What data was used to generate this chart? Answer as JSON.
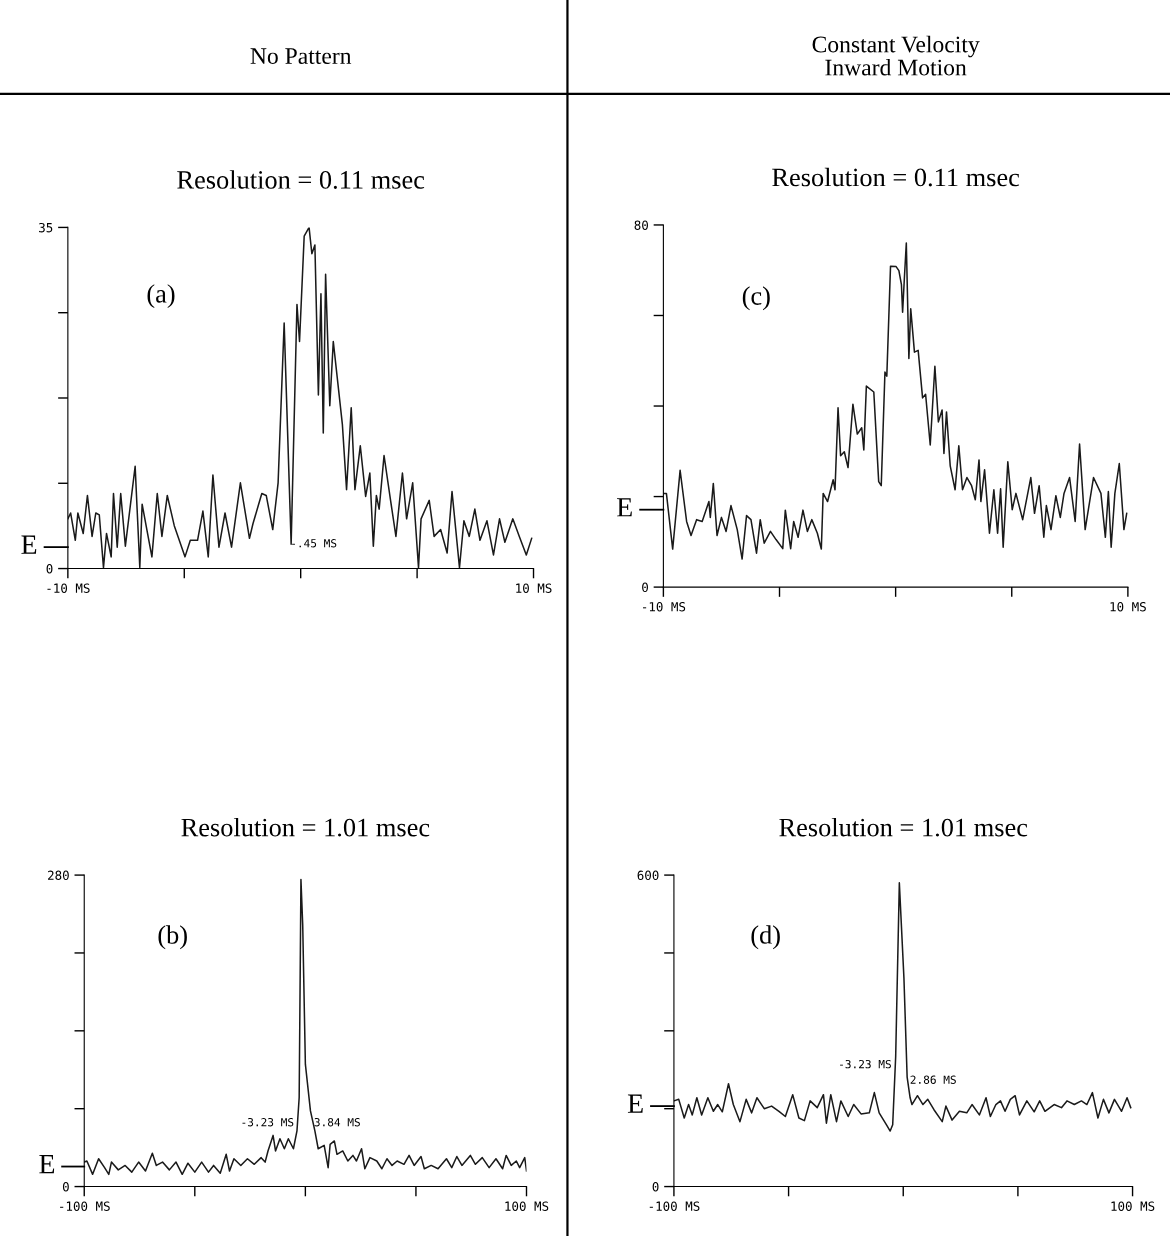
{
  "chart_data": [
    {
      "type": "line",
      "title": "No Pattern",
      "subtitle": "Resolution = 0.11 msec",
      "marker": "none",
      "line_style": "solid",
      "grid": false,
      "xlim": [
        -10,
        10
      ],
      "xticks": [
        {
          "value": -10,
          "label": "-10 MS"
        },
        {
          "value": -5,
          "label": null
        },
        {
          "value": 0,
          "label": null
        },
        {
          "value": 5,
          "label": null
        },
        {
          "value": 10,
          "label": "10 MS"
        }
      ],
      "ylim": [
        0,
        35
      ],
      "yticks": [
        0,
        {
          "value": 8.75,
          "label": null
        },
        {
          "value": 17.5,
          "label": null
        },
        {
          "value": 26.25,
          "label": null
        },
        35
      ],
      "ref_lines": [
        {
          "axis": "y",
          "value": 2.2,
          "label": "E"
        }
      ],
      "annotations": [
        "(a)",
        {
          "text": "-.45 MS",
          "x": -0.45,
          "y": 2.5
        }
      ],
      "series": [
        {
          "color": "#1a1a1a",
          "x": [
            -10.0,
            -9.88,
            -9.68,
            -9.57,
            -9.34,
            -9.16,
            -8.96,
            -8.8,
            -8.65,
            -8.47,
            -8.34,
            -8.14,
            -8.04,
            -7.88,
            -7.73,
            -7.53,
            -7.11,
            -6.91,
            -6.81,
            -6.39,
            -6.16,
            -5.96,
            -5.73,
            -5.43,
            -4.97,
            -4.74,
            -4.43,
            -4.2,
            -3.97,
            -3.77,
            -3.51,
            -3.25,
            -2.97,
            -2.59,
            -2.2,
            -2.05,
            -1.67,
            -1.48,
            -1.2,
            -0.97,
            -0.71,
            -0.41,
            -0.16,
            -0.05,
            0.15,
            0.36,
            0.48,
            0.61,
            0.76,
            0.87,
            0.97,
            1.07,
            1.25,
            1.4,
            1.79,
            1.97,
            2.17,
            2.33,
            2.56,
            2.79,
            2.97,
            3.12,
            3.25,
            3.37,
            3.58,
            3.86,
            4.09,
            4.37,
            4.55,
            4.81,
            5.06,
            5.17,
            5.52,
            5.73,
            6.01,
            6.29,
            6.5,
            6.82,
            7.01,
            7.24,
            7.48,
            7.7,
            8.0,
            8.28,
            8.54,
            8.77,
            9.11,
            9.39,
            9.69,
            9.92
          ],
          "values": [
            5.1,
            5.7,
            2.9,
            5.7,
            3.6,
            7.5,
            3.3,
            5.7,
            5.5,
            0.1,
            3.6,
            1.2,
            7.7,
            2.2,
            7.7,
            2.3,
            10.5,
            0.1,
            6.6,
            1.2,
            7.7,
            3.3,
            7.5,
            4.4,
            1.2,
            2.9,
            2.9,
            5.9,
            1.2,
            9.6,
            2.2,
            5.7,
            2.2,
            8.8,
            3.1,
            4.6,
            7.7,
            7.5,
            4.0,
            8.8,
            25.2,
            2.5,
            27.1,
            23.3,
            34.1,
            35.0,
            32.3,
            33.2,
            17.8,
            28.2,
            13.9,
            30.2,
            16.7,
            23.3,
            14.8,
            8.1,
            16.5,
            8.1,
            12.6,
            7.4,
            9.8,
            2.3,
            7.5,
            6.1,
            11.6,
            7.0,
            3.3,
            9.8,
            5.1,
            8.8,
            0.1,
            5.1,
            7.0,
            3.3,
            4.0,
            1.6,
            7.9,
            0.1,
            4.9,
            3.3,
            6.1,
            2.9,
            4.9,
            1.4,
            5.1,
            2.7,
            5.1,
            3.3,
            1.4,
            3.1
          ]
        }
      ]
    },
    {
      "type": "line",
      "title": "Constant Velocity\nInward Motion",
      "subtitle": "Resolution = 0.11 msec",
      "marker": "none",
      "line_style": "solid",
      "grid": false,
      "xlim": [
        -10,
        10
      ],
      "xticks": [
        {
          "value": -10,
          "label": "-10 MS"
        },
        {
          "value": -5,
          "label": null
        },
        {
          "value": 0,
          "label": null
        },
        {
          "value": 5,
          "label": null
        },
        {
          "value": 10,
          "label": "10 MS"
        }
      ],
      "ylim": [
        0,
        80
      ],
      "yticks": [
        0,
        {
          "value": 20,
          "label": null
        },
        {
          "value": 40,
          "label": null
        },
        {
          "value": 60,
          "label": null
        },
        80
      ],
      "ref_lines": [
        {
          "axis": "y",
          "value": 17.1,
          "label": "E"
        }
      ],
      "annotations": [
        "(c)"
      ],
      "series": [
        {
          "color": "#1a1a1a",
          "x": [
            -10.0,
            -9.87,
            -9.6,
            -9.28,
            -9.0,
            -8.81,
            -8.57,
            -8.33,
            -8.04,
            -7.98,
            -7.85,
            -7.69,
            -7.5,
            -7.3,
            -7.09,
            -6.82,
            -6.61,
            -6.42,
            -6.23,
            -5.99,
            -5.83,
            -5.66,
            -5.39,
            -5.15,
            -4.86,
            -4.75,
            -4.52,
            -4.39,
            -4.2,
            -3.99,
            -3.8,
            -3.61,
            -3.37,
            -3.2,
            -3.12,
            -2.93,
            -2.69,
            -2.61,
            -2.48,
            -2.37,
            -2.21,
            -2.05,
            -1.84,
            -1.65,
            -1.46,
            -1.37,
            -1.26,
            -0.94,
            -0.73,
            -0.62,
            -0.46,
            -0.38,
            -0.22,
            0.02,
            0.14,
            0.25,
            0.3,
            0.38,
            0.46,
            0.57,
            0.65,
            0.81,
            0.97,
            1.16,
            1.29,
            1.49,
            1.69,
            1.84,
            2.0,
            2.08,
            2.19,
            2.35,
            2.56,
            2.72,
            2.88,
            3.07,
            3.27,
            3.43,
            3.59,
            3.67,
            3.83,
            4.04,
            4.23,
            4.39,
            4.52,
            4.63,
            4.83,
            5.02,
            5.18,
            5.47,
            5.82,
            5.98,
            6.18,
            6.38,
            6.49,
            6.69,
            6.9,
            7.09,
            7.25,
            7.49,
            7.73,
            7.92,
            8.16,
            8.52,
            8.84,
            9.03,
            9.16,
            9.28,
            9.44,
            9.63,
            9.83,
            9.95
          ],
          "values": [
            20.7,
            20.7,
            8.4,
            25.8,
            14.5,
            11.4,
            14.9,
            14.5,
            18.9,
            15.4,
            22.9,
            11.4,
            15.4,
            12.3,
            18.0,
            12.7,
            6.2,
            15.8,
            14.9,
            7.5,
            14.9,
            9.7,
            12.3,
            10.5,
            8.5,
            17.0,
            8.5,
            14.5,
            11.0,
            17.0,
            12.3,
            14.9,
            11.9,
            8.4,
            20.7,
            18.9,
            23.7,
            21.5,
            39.6,
            29.0,
            29.9,
            26.4,
            40.4,
            33.8,
            35.2,
            30.3,
            44.4,
            43.1,
            23.3,
            22.4,
            47.5,
            46.6,
            70.9,
            70.8,
            69.9,
            66.8,
            60.7,
            68.6,
            76.0,
            50.5,
            61.5,
            51.9,
            52.3,
            41.8,
            42.6,
            31.4,
            48.8,
            36.5,
            39.1,
            29.5,
            38.7,
            26.8,
            21.5,
            31.2,
            21.5,
            24.2,
            22.4,
            19.3,
            28.1,
            18.9,
            25.9,
            11.9,
            21.5,
            11.9,
            21.7,
            8.8,
            27.7,
            17.1,
            20.7,
            14.9,
            24.2,
            16.3,
            22.4,
            11.0,
            18.0,
            12.7,
            20.2,
            15.4,
            20.7,
            24.2,
            14.5,
            31.6,
            12.7,
            24.2,
            20.7,
            11.0,
            21.1,
            8.8,
            20.7,
            27.3,
            12.7,
            16.3
          ]
        }
      ]
    },
    {
      "type": "line",
      "title": "Resolution = 1.01 msec",
      "marker": "none",
      "line_style": "solid",
      "grid": false,
      "xlim": [
        -100,
        100
      ],
      "xticks": [
        {
          "value": -100,
          "label": "-100 MS"
        },
        {
          "value": -50,
          "label": null
        },
        {
          "value": 0,
          "label": null
        },
        {
          "value": 50,
          "label": null
        },
        {
          "value": 100,
          "label": "100 MS"
        }
      ],
      "ylim": [
        0,
        280
      ],
      "yticks": [
        0,
        {
          "value": 70,
          "label": null
        },
        {
          "value": 140,
          "label": null
        },
        {
          "value": 210,
          "label": null
        },
        280
      ],
      "ref_lines": [
        {
          "axis": "y",
          "value": 18,
          "label": "E"
        }
      ],
      "annotations": [
        "(b)",
        {
          "text": "-3.23 MS",
          "x": -3.23,
          "y": 57
        },
        {
          "text": "3.84 MS",
          "x": 3.84,
          "y": 57
        }
      ],
      "series": [
        {
          "color": "#1a1a1a",
          "x": [
            -100,
            -98.8,
            -96.2,
            -93.5,
            -90.8,
            -88.9,
            -87.7,
            -84.6,
            -81.5,
            -78.5,
            -75.4,
            -72.3,
            -69.2,
            -67.4,
            -64.6,
            -61.5,
            -58.5,
            -55.7,
            -53.1,
            -50.0,
            -46.9,
            -43.8,
            -41.5,
            -38.5,
            -35.8,
            -34.3,
            -32.3,
            -29.2,
            -26.2,
            -23.1,
            -20.0,
            -18.2,
            -16.9,
            -14.6,
            -13.5,
            -11.5,
            -9.5,
            -7.7,
            -5.4,
            -3.8,
            -2.8,
            -2.0,
            -1.2,
            0.0,
            2.3,
            4.3,
            5.8,
            8.5,
            10.3,
            11.2,
            13.1,
            14.3,
            16.9,
            19.2,
            21.5,
            23.1,
            25.4,
            26.9,
            29.2,
            32.3,
            34.6,
            36.9,
            39.2,
            41.5,
            44.6,
            46.9,
            49.2,
            52.3,
            53.8,
            56.9,
            60.0,
            63.8,
            66.2,
            68.5,
            70.8,
            74.6,
            76.9,
            80.0,
            83.1,
            86.2,
            89.2,
            90.8,
            93.1,
            95.4,
            96.9,
            99.2,
            100
          ],
          "values": [
            22,
            23,
            11,
            25,
            17,
            11,
            22,
            15,
            19,
            13,
            22,
            14,
            30,
            19,
            22,
            15,
            22,
            11,
            21,
            13,
            22,
            13,
            19,
            12,
            29,
            14,
            25,
            19,
            25,
            20,
            26,
            22,
            32,
            46,
            32,
            43,
            34,
            43,
            34,
            50,
            80,
            276,
            235,
            110,
            68,
            50,
            34,
            37,
            17,
            38,
            41,
            29,
            32,
            23,
            28,
            23,
            34,
            16,
            26,
            23,
            16,
            25,
            19,
            23,
            20,
            28,
            19,
            27,
            16,
            19,
            16,
            25,
            17,
            27,
            19,
            28,
            20,
            26,
            17,
            25,
            16,
            28,
            19,
            23,
            17,
            26,
            14
          ]
        }
      ]
    },
    {
      "type": "line",
      "title": "Resolution = 1.01 msec",
      "marker": "none",
      "line_style": "solid",
      "grid": false,
      "xlim": [
        -100,
        100
      ],
      "xticks": [
        {
          "value": -100,
          "label": "-100 MS"
        },
        {
          "value": -50,
          "label": null
        },
        {
          "value": 0,
          "label": null
        },
        {
          "value": 50,
          "label": null
        },
        {
          "value": 100,
          "label": "100 MS"
        }
      ],
      "ylim": [
        0,
        600
      ],
      "yticks": [
        0,
        {
          "value": 150,
          "label": null
        },
        {
          "value": 300,
          "label": null
        },
        {
          "value": 450,
          "label": null
        },
        600
      ],
      "ref_lines": [
        {
          "axis": "y",
          "value": 155,
          "label": "E"
        }
      ],
      "annotations": [
        "(d)",
        {
          "text": "-3.23 MS",
          "x": -3.23,
          "y": 234
        },
        {
          "text": "2.86 MS",
          "x": 2.86,
          "y": 204
        }
      ],
      "series": [
        {
          "color": "#1a1a1a",
          "x": [
            -100,
            -97.9,
            -95.5,
            -93.6,
            -92.0,
            -90.0,
            -87.9,
            -85.2,
            -82.8,
            -80.9,
            -78.9,
            -76.2,
            -74.1,
            -71.2,
            -68.5,
            -66.1,
            -63.8,
            -60.6,
            -57.4,
            -54.2,
            -51.4,
            -48.2,
            -45.5,
            -43.1,
            -40.6,
            -37.5,
            -34.8,
            -33.5,
            -31.6,
            -29.1,
            -27.2,
            -24.0,
            -21.6,
            -18.4,
            -14.8,
            -12.6,
            -10.5,
            -7.3,
            -5.7,
            -4.6,
            -3.3,
            -1.7,
            0.3,
            1.7,
            3.0,
            3.8,
            6.2,
            8.6,
            10.7,
            13.4,
            17.0,
            18.6,
            21.3,
            24.5,
            27.7,
            30.0,
            33.2,
            36.1,
            38.0,
            40.4,
            42.4,
            44.4,
            46.7,
            48.8,
            50.7,
            53.9,
            57.1,
            59.5,
            61.8,
            65.8,
            69.0,
            71.4,
            74.6,
            77.7,
            80.1,
            82.5,
            84.9,
            87.3,
            89.7,
            92.1,
            95.2,
            97.6,
            99.2
          ],
          "values": [
            165,
            168,
            132,
            158,
            138,
            171,
            138,
            171,
            145,
            158,
            144,
            198,
            158,
            125,
            168,
            142,
            171,
            150,
            155,
            145,
            135,
            177,
            132,
            127,
            165,
            152,
            177,
            122,
            177,
            125,
            165,
            135,
            158,
            140,
            142,
            181,
            142,
            119,
            107,
            119,
            250,
            585,
            402,
            211,
            171,
            158,
            175,
            158,
            168,
            148,
            125,
            155,
            128,
            145,
            142,
            158,
            138,
            171,
            135,
            158,
            165,
            145,
            168,
            175,
            138,
            165,
            144,
            165,
            145,
            158,
            152,
            165,
            158,
            165,
            158,
            181,
            132,
            168,
            142,
            168,
            145,
            171,
            152
          ]
        }
      ]
    }
  ]
}
